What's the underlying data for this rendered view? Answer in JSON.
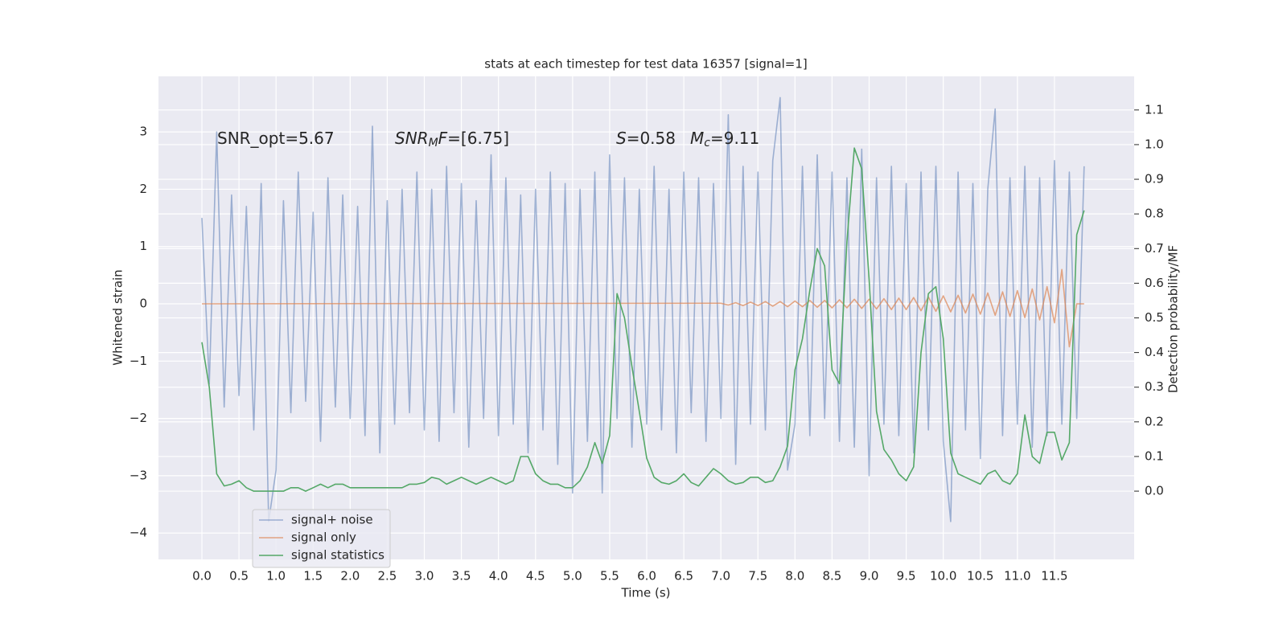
{
  "chart_data": {
    "type": "line",
    "title": "stats at each timestep for test data 16357 [signal=1]",
    "xlabel": "Time (s)",
    "ylabel": "Whitened strain",
    "y2label": "Detection probability/MF",
    "annotations": [
      {
        "parts": [
          {
            "text": "SNR_opt=5.67"
          }
        ]
      },
      {
        "parts": [
          {
            "text": "SNR",
            "italic": true
          },
          {
            "text": "M",
            "italic": true,
            "sub": true
          },
          {
            "text": "F",
            "italic": true
          },
          {
            "text": "=[6.75]"
          }
        ]
      },
      {
        "parts": [
          {
            "text": "S",
            "italic": true
          },
          {
            "text": "=0.58"
          }
        ]
      },
      {
        "parts": [
          {
            "text": "M",
            "italic": true
          },
          {
            "text": "c",
            "italic": true,
            "sub": true
          },
          {
            "text": "=9.11"
          }
        ]
      }
    ],
    "grid": true,
    "legend": "lower left",
    "xlim": [
      -0.586,
      12.575
    ],
    "ylim": [
      -4.46,
      3.97
    ],
    "y2lim": [
      -0.197,
      1.197
    ],
    "xticks": [
      {
        "value": 0,
        "label": "0.0"
      },
      {
        "value": 0.5,
        "label": "0.5"
      },
      {
        "value": 1,
        "label": "1.0"
      },
      {
        "value": 1.5,
        "label": "1.5"
      },
      {
        "value": 2,
        "label": "2.0"
      },
      {
        "value": 2.5,
        "label": "2.5"
      },
      {
        "value": 3,
        "label": "3.0"
      },
      {
        "value": 3.5,
        "label": "3.5"
      },
      {
        "value": 4,
        "label": "4.0"
      },
      {
        "value": 4.5,
        "label": "4.5"
      },
      {
        "value": 5,
        "label": "5.0"
      },
      {
        "value": 5.5,
        "label": "5.5"
      },
      {
        "value": 6,
        "label": "6.0"
      },
      {
        "value": 6.5,
        "label": "6.5"
      },
      {
        "value": 7,
        "label": "7.0"
      },
      {
        "value": 7.5,
        "label": "7.5"
      },
      {
        "value": 8,
        "label": "8.0"
      },
      {
        "value": 8.5,
        "label": "8.5"
      },
      {
        "value": 9,
        "label": "9.0"
      },
      {
        "value": 9.5,
        "label": "9.5"
      },
      {
        "value": 10,
        "label": "10.0"
      },
      {
        "value": 10.5,
        "label": "10.5"
      },
      {
        "value": 11,
        "label": "11.0"
      },
      {
        "value": 11.5,
        "label": "11.5"
      }
    ],
    "yticks": [
      {
        "value": -4,
        "label": "−4"
      },
      {
        "value": -3,
        "label": "−3"
      },
      {
        "value": -2,
        "label": "−2"
      },
      {
        "value": -1,
        "label": "−1"
      },
      0,
      1,
      2,
      3
    ],
    "y2ticks": [
      {
        "value": 0,
        "label": "0.0"
      },
      {
        "value": 0.1,
        "label": "0.1"
      },
      {
        "value": 0.2,
        "label": "0.2"
      },
      {
        "value": 0.3,
        "label": "0.3"
      },
      {
        "value": 0.4,
        "label": "0.4"
      },
      {
        "value": 0.5,
        "label": "0.5"
      },
      {
        "value": 0.6,
        "label": "0.6"
      },
      {
        "value": 0.7,
        "label": "0.7"
      },
      {
        "value": 0.8,
        "label": "0.8"
      },
      {
        "value": 0.9,
        "label": "0.9"
      },
      {
        "value": 1,
        "label": "1.0"
      },
      {
        "value": 1.1,
        "label": "1.1"
      }
    ],
    "series": [
      {
        "name": "signal+ noise",
        "color": "#4c72b0",
        "opacity": 0.5,
        "x": [
          0,
          0.1,
          0.2,
          0.3,
          0.4,
          0.5,
          0.6,
          0.7,
          0.8,
          0.9,
          1,
          1.1,
          1.2,
          1.3,
          1.4,
          1.5,
          1.6,
          1.7,
          1.8,
          1.9,
          2,
          2.1,
          2.2,
          2.3,
          2.4,
          2.5,
          2.6,
          2.7,
          2.8,
          2.9,
          3,
          3.1,
          3.2,
          3.3,
          3.4,
          3.5,
          3.6,
          3.7,
          3.8,
          3.9,
          4,
          4.1,
          4.2,
          4.3,
          4.4,
          4.5,
          4.6,
          4.7,
          4.8,
          4.9,
          5,
          5.1,
          5.2,
          5.3,
          5.4,
          5.5,
          5.6,
          5.7,
          5.8,
          5.9,
          6,
          6.1,
          6.2,
          6.3,
          6.4,
          6.5,
          6.6,
          6.7,
          6.8,
          6.9,
          7,
          7.1,
          7.2,
          7.3,
          7.4,
          7.5,
          7.6,
          7.7,
          7.8,
          7.9,
          8,
          8.1,
          8.2,
          8.3,
          8.4,
          8.5,
          8.6,
          8.7,
          8.8,
          8.9,
          9,
          9.1,
          9.2,
          9.3,
          9.4,
          9.5,
          9.6,
          9.7,
          9.8,
          9.9,
          10,
          10.1,
          10.2,
          10.3,
          10.4,
          10.5,
          10.6,
          10.7,
          10.8,
          10.9,
          11,
          11.1,
          11.2,
          11.3,
          11.4,
          11.5,
          11.6,
          11.7,
          11.8,
          11.9
        ],
        "values": [
          1.5,
          -1.4,
          3.0,
          -1.8,
          1.9,
          -1.6,
          1.7,
          -2.2,
          2.1,
          -3.8,
          -2.9,
          1.8,
          -1.9,
          2.3,
          -1.7,
          1.6,
          -2.4,
          2.2,
          -1.8,
          1.9,
          -2.0,
          1.7,
          -2.3,
          3.1,
          -2.6,
          1.8,
          -2.1,
          2.0,
          -1.9,
          2.3,
          -2.2,
          2.0,
          -2.4,
          2.4,
          -1.9,
          2.1,
          -2.5,
          1.8,
          -2.0,
          2.6,
          -2.3,
          2.2,
          -2.1,
          1.9,
          -2.6,
          2.0,
          -2.2,
          2.3,
          -2.8,
          2.1,
          -3.3,
          2.0,
          -2.4,
          2.3,
          -3.3,
          2.6,
          -2.0,
          2.2,
          -2.5,
          2.0,
          -2.1,
          2.4,
          -2.2,
          2.0,
          -2.6,
          2.3,
          -1.9,
          2.2,
          -2.4,
          2.1,
          -2.0,
          3.3,
          -2.8,
          2.4,
          -2.1,
          2.3,
          -2.2,
          2.5,
          3.6,
          -2.9,
          -2.1,
          2.4,
          -2.3,
          2.6,
          -2.0,
          2.3,
          -2.4,
          2.2,
          -2.5,
          2.7,
          -3.0,
          2.2,
          -2.1,
          2.4,
          -2.3,
          2.1,
          -2.6,
          2.3,
          -2.2,
          2.4,
          -2.4,
          -3.8,
          2.3,
          -2.2,
          2.1,
          -2.7,
          2.0,
          3.4,
          -2.3,
          2.2,
          -2.1,
          2.4,
          -2.5,
          2.2,
          -2.3,
          2.5,
          -2.1,
          2.3,
          -2.0,
          2.4
        ]
      },
      {
        "name": "signal only",
        "color": "#dd8452",
        "opacity": 0.7,
        "x": [
          0,
          7,
          7.1,
          7.2,
          7.3,
          7.4,
          7.5,
          7.6,
          7.7,
          7.8,
          7.9,
          8,
          8.1,
          8.2,
          8.3,
          8.4,
          8.5,
          8.6,
          8.7,
          8.8,
          8.9,
          9,
          9.1,
          9.2,
          9.3,
          9.4,
          9.5,
          9.6,
          9.7,
          9.8,
          9.9,
          10,
          10.1,
          10.2,
          10.3,
          10.4,
          10.5,
          10.6,
          10.7,
          10.8,
          10.9,
          11,
          11.1,
          11.2,
          11.3,
          11.4,
          11.5,
          11.6,
          11.7,
          11.8,
          11.9
        ],
        "values": [
          0,
          0.01,
          -0.02,
          0.02,
          -0.03,
          0.03,
          -0.03,
          0.04,
          -0.04,
          0.04,
          -0.05,
          0.05,
          -0.05,
          0.06,
          -0.06,
          0.06,
          -0.07,
          0.07,
          -0.07,
          0.08,
          -0.08,
          0.08,
          -0.09,
          0.09,
          -0.1,
          0.1,
          -0.1,
          0.11,
          -0.12,
          0.12,
          -0.13,
          0.14,
          -0.14,
          0.15,
          -0.16,
          0.17,
          -0.18,
          0.19,
          -0.2,
          0.21,
          -0.22,
          0.23,
          -0.24,
          0.26,
          -0.28,
          0.3,
          -0.33,
          0.6,
          -0.75,
          0,
          0
        ]
      },
      {
        "name": "signal statistics",
        "color": "#55a868",
        "opacity": 1,
        "axis": "y2",
        "x": [
          0,
          0.1,
          0.2,
          0.3,
          0.4,
          0.5,
          0.6,
          0.7,
          0.8,
          0.9,
          1,
          1.1,
          1.2,
          1.3,
          1.4,
          1.5,
          1.6,
          1.7,
          1.8,
          1.9,
          2,
          2.1,
          2.2,
          2.3,
          2.4,
          2.5,
          2.6,
          2.7,
          2.8,
          2.9,
          3,
          3.1,
          3.2,
          3.3,
          3.4,
          3.5,
          3.6,
          3.7,
          3.8,
          3.9,
          4,
          4.1,
          4.2,
          4.3,
          4.4,
          4.5,
          4.6,
          4.7,
          4.8,
          4.9,
          5,
          5.1,
          5.2,
          5.3,
          5.4,
          5.5,
          5.6,
          5.7,
          5.8,
          5.9,
          6,
          6.1,
          6.2,
          6.3,
          6.4,
          6.5,
          6.6,
          6.7,
          6.8,
          6.9,
          7,
          7.1,
          7.2,
          7.3,
          7.4,
          7.5,
          7.6,
          7.7,
          7.8,
          7.9,
          8,
          8.1,
          8.2,
          8.3,
          8.4,
          8.5,
          8.6,
          8.7,
          8.8,
          8.9,
          9,
          9.1,
          9.2,
          9.3,
          9.4,
          9.5,
          9.6,
          9.7,
          9.8,
          9.9,
          10,
          10.1,
          10.2,
          10.3,
          10.4,
          10.5,
          10.6,
          10.7,
          10.8,
          10.9,
          11,
          11.1,
          11.2,
          11.3,
          11.4,
          11.5,
          11.6,
          11.7,
          11.8,
          11.9
        ],
        "values": [
          0.43,
          0.3,
          0.05,
          0.015,
          0.02,
          0.03,
          0.01,
          0.0,
          0.0,
          0.0,
          0.0,
          0.0,
          0.01,
          0.01,
          0.0,
          0.01,
          0.02,
          0.01,
          0.02,
          0.02,
          0.01,
          0.01,
          0.01,
          0.01,
          0.01,
          0.01,
          0.01,
          0.01,
          0.02,
          0.02,
          0.025,
          0.04,
          0.035,
          0.02,
          0.03,
          0.04,
          0.03,
          0.02,
          0.03,
          0.04,
          0.03,
          0.02,
          0.03,
          0.1,
          0.1,
          0.05,
          0.03,
          0.02,
          0.02,
          0.01,
          0.01,
          0.03,
          0.07,
          0.14,
          0.08,
          0.16,
          0.57,
          0.5,
          0.36,
          0.23,
          0.095,
          0.04,
          0.025,
          0.02,
          0.03,
          0.05,
          0.025,
          0.015,
          0.04,
          0.065,
          0.05,
          0.03,
          0.02,
          0.025,
          0.04,
          0.04,
          0.025,
          0.03,
          0.07,
          0.13,
          0.35,
          0.44,
          0.58,
          0.7,
          0.65,
          0.35,
          0.31,
          0.72,
          0.99,
          0.93,
          0.61,
          0.23,
          0.12,
          0.09,
          0.05,
          0.03,
          0.07,
          0.4,
          0.57,
          0.59,
          0.44,
          0.11,
          0.05,
          0.04,
          0.03,
          0.02,
          0.05,
          0.06,
          0.03,
          0.02,
          0.05,
          0.22,
          0.1,
          0.08,
          0.17,
          0.17,
          0.09,
          0.14,
          0.74,
          0.81
        ]
      }
    ]
  }
}
